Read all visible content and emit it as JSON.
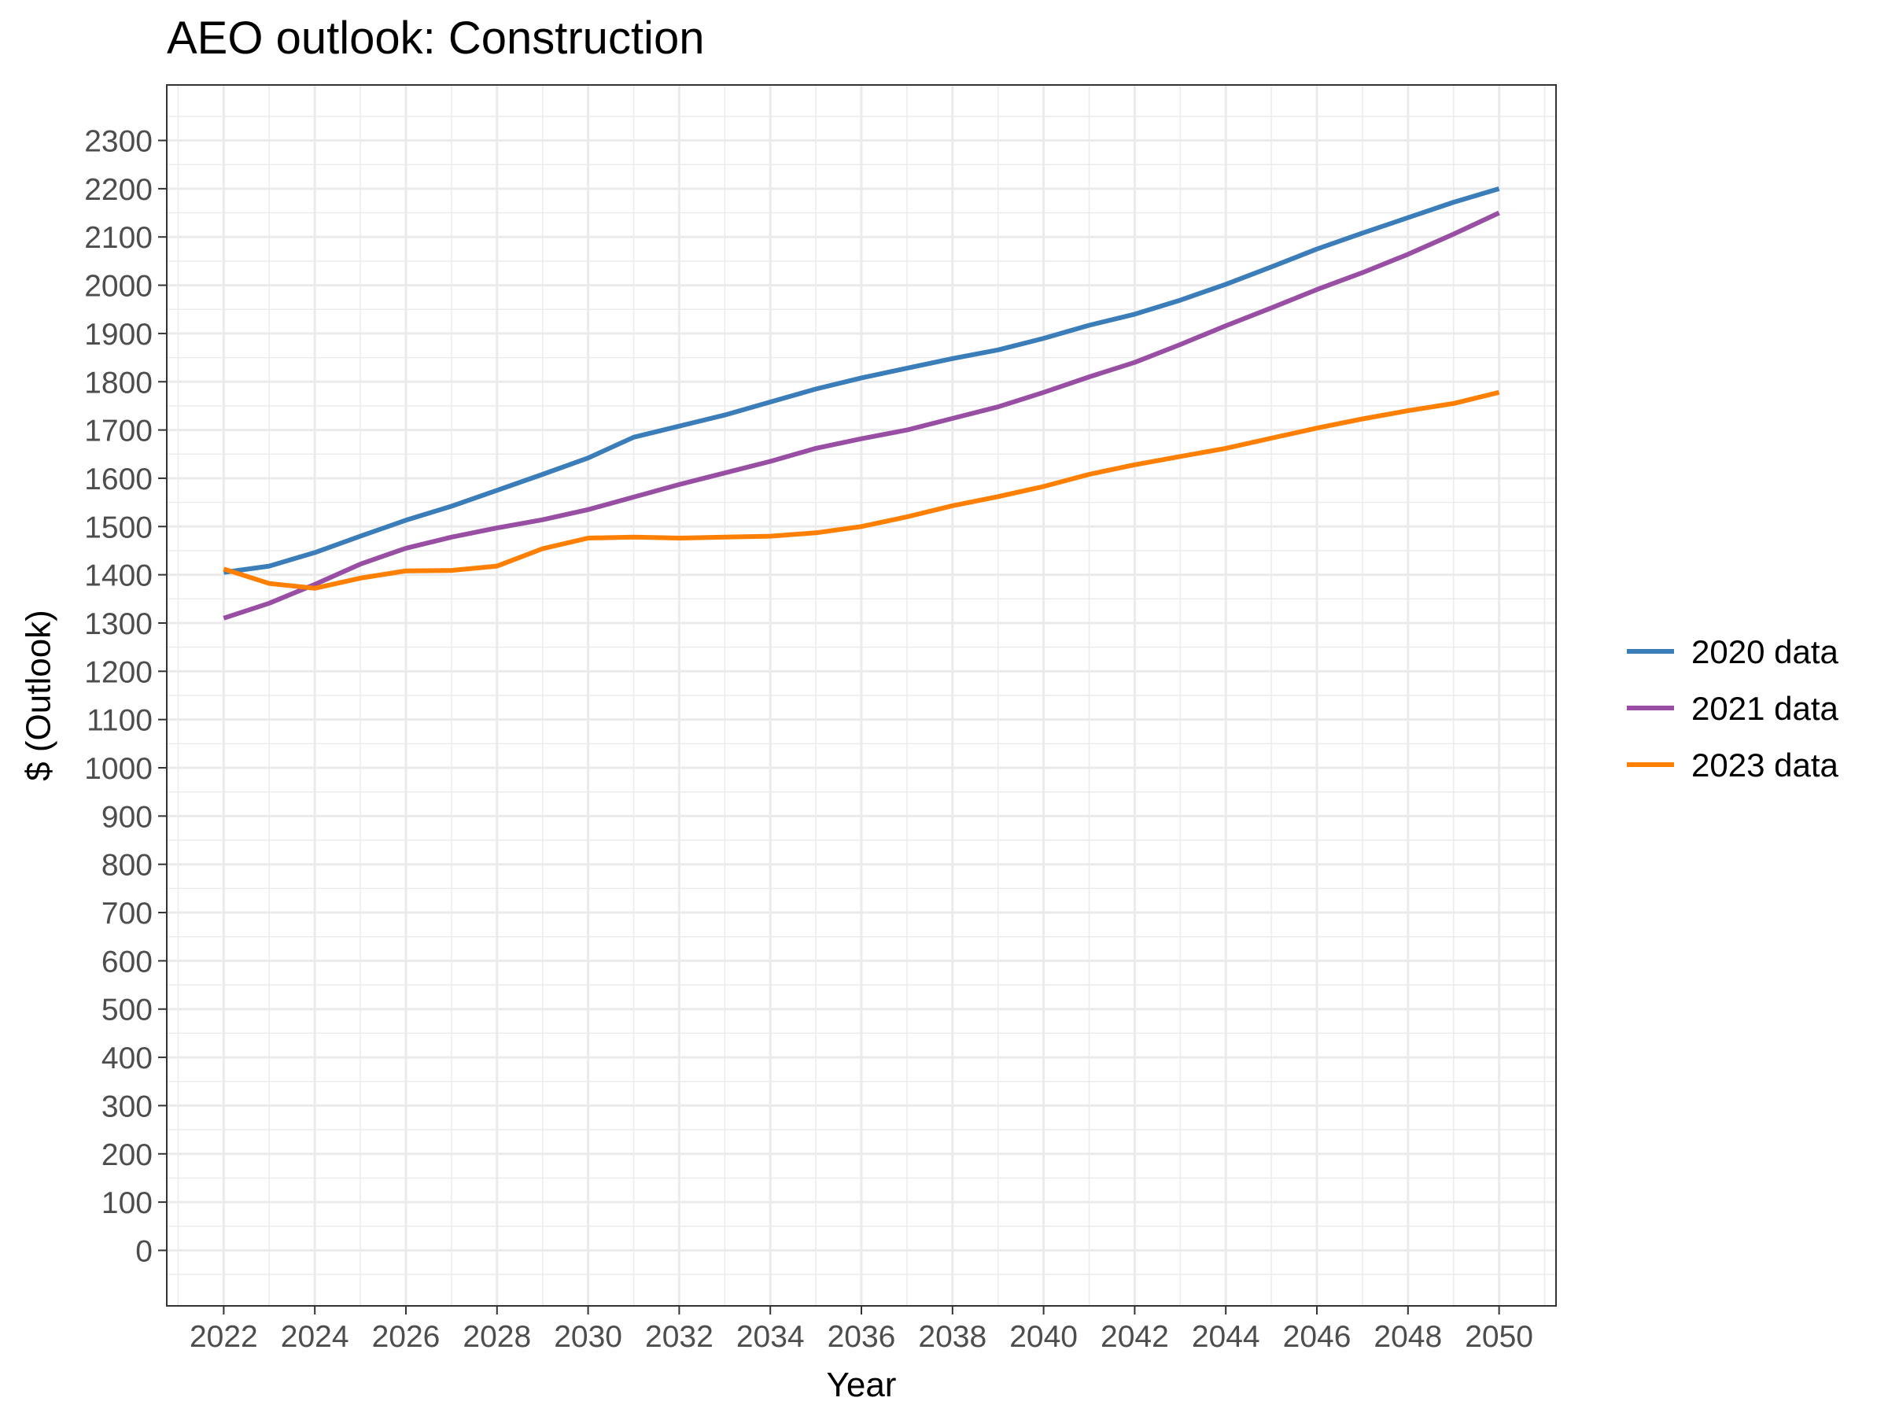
{
  "chart_data": {
    "type": "line",
    "title": "AEO outlook: Construction",
    "xlabel": "Year",
    "ylabel": "$ (Outlook)",
    "xlim": [
      2020.75,
      2051.25
    ],
    "ylim": [
      -115,
      2415
    ],
    "x_ticks": [
      2022,
      2024,
      2026,
      2028,
      2030,
      2032,
      2034,
      2036,
      2038,
      2040,
      2042,
      2044,
      2046,
      2048,
      2050
    ],
    "y_ticks": [
      0,
      100,
      200,
      300,
      400,
      500,
      600,
      700,
      800,
      900,
      1000,
      1100,
      1200,
      1300,
      1400,
      1500,
      1600,
      1700,
      1800,
      1900,
      2000,
      2100,
      2200,
      2300
    ],
    "grid": true,
    "legend_position": "right",
    "x": [
      2022,
      2023,
      2024,
      2025,
      2026,
      2027,
      2028,
      2029,
      2030,
      2031,
      2032,
      2033,
      2034,
      2035,
      2036,
      2037,
      2038,
      2039,
      2040,
      2041,
      2042,
      2043,
      2044,
      2045,
      2046,
      2047,
      2048,
      2049,
      2050
    ],
    "series": [
      {
        "name": "2020 data",
        "color": "#3A7DB8",
        "values": [
          1405,
          1418,
          1446,
          1480,
          1513,
          1542,
          1575,
          1608,
          1642,
          1685,
          1708,
          1731,
          1758,
          1785,
          1808,
          1828,
          1848,
          1866,
          1890,
          1917,
          1940,
          1969,
          2002,
          2038,
          2075,
          2108,
          2140,
          2172,
          2200
        ]
      },
      {
        "name": "2021 data",
        "color": "#984EA3",
        "values": [
          1310,
          1341,
          1380,
          1422,
          1455,
          1478,
          1497,
          1514,
          1535,
          1561,
          1587,
          1611,
          1635,
          1662,
          1682,
          1700,
          1724,
          1748,
          1778,
          1810,
          1840,
          1877,
          1916,
          1953,
          1991,
          2026,
          2064,
          2106,
          2150
        ]
      },
      {
        "name": "2023 data",
        "color": "#FF7F00",
        "values": [
          1412,
          1382,
          1372,
          1393,
          1408,
          1409,
          1418,
          1454,
          1476,
          1478,
          1476,
          1478,
          1480,
          1487,
          1500,
          1520,
          1543,
          1562,
          1583,
          1608,
          1628,
          1645,
          1662,
          1683,
          1704,
          1723,
          1740,
          1755,
          1778
        ]
      }
    ]
  }
}
